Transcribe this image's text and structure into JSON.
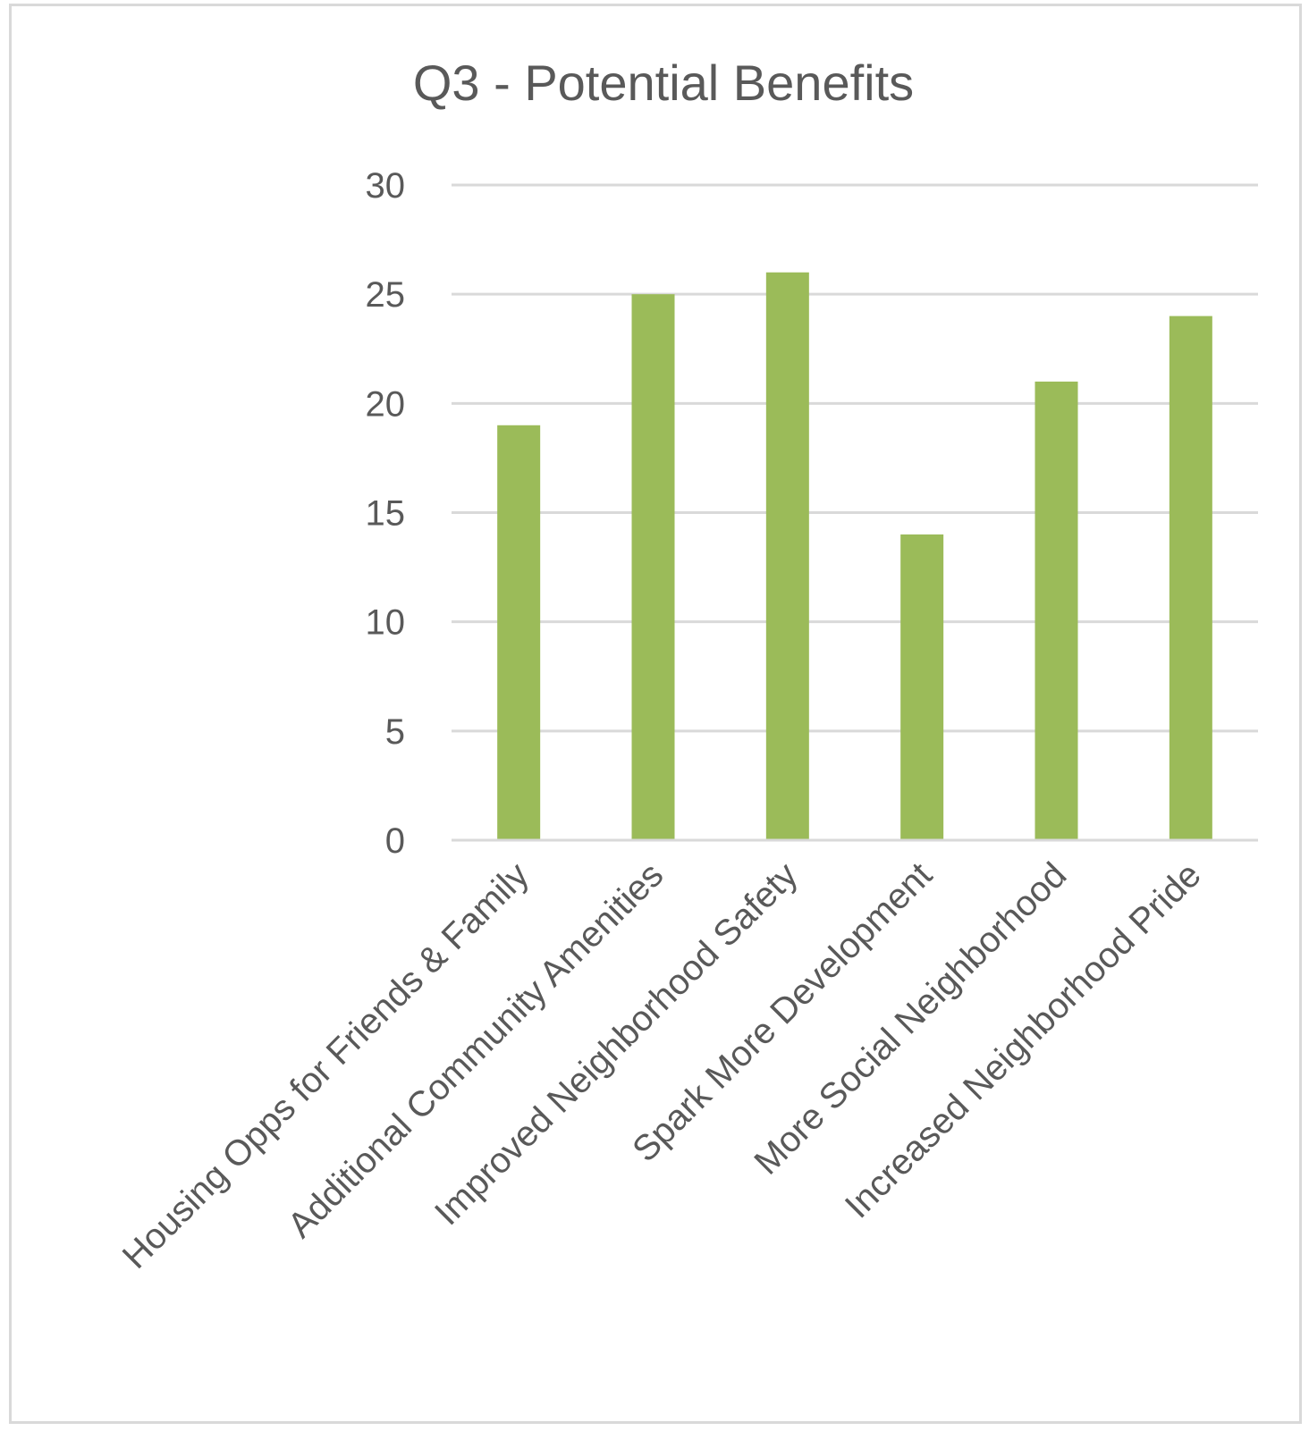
{
  "chart_data": {
    "type": "bar",
    "title": "Q3 - Potential Benefits",
    "xlabel": "",
    "ylabel": "",
    "categories": [
      "Housing Opps for Friends & Family",
      "Additional Community Amenities",
      "Improved Neighborhood Safety",
      "Spark More Development",
      "More Social Neighborhood",
      "Increased Neighborhood Pride"
    ],
    "values": [
      19,
      25,
      26,
      14,
      21,
      24
    ],
    "ylim": [
      0,
      30
    ],
    "yticks": [
      0,
      5,
      10,
      15,
      20,
      25,
      30
    ],
    "grid": true,
    "legend": "none",
    "colors": {
      "bar": "#9bbb59",
      "grid": "#d9d9d9",
      "text": "#595959",
      "border": "#d9d9d9"
    }
  }
}
